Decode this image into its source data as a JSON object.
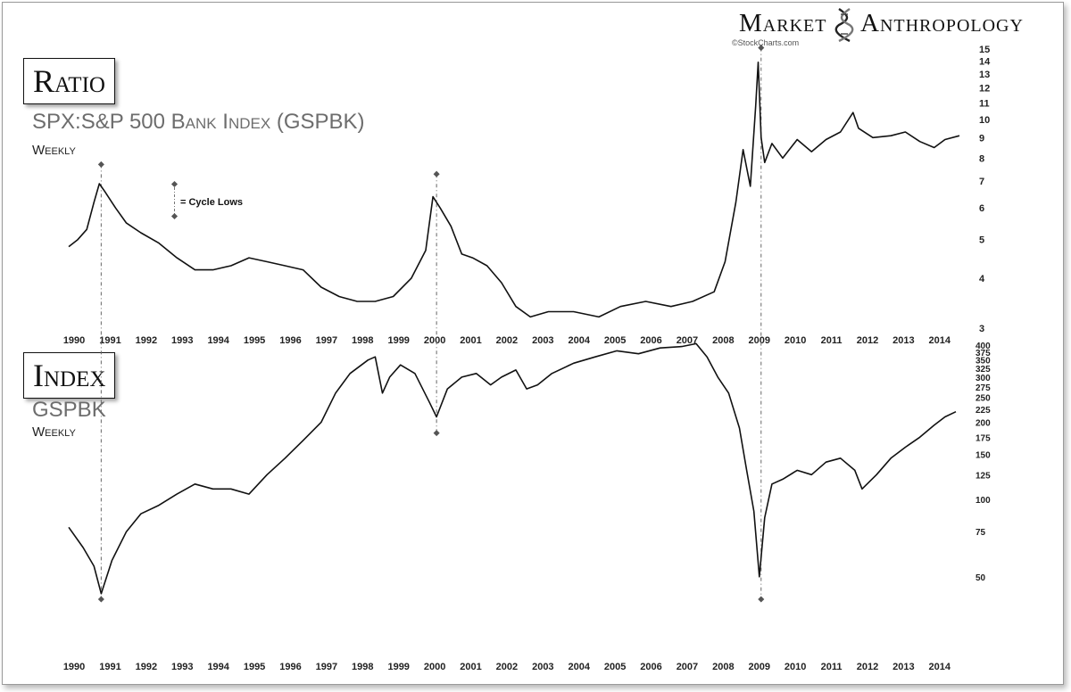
{
  "brand": {
    "left": "Market",
    "right": "Anthropology",
    "credit": "©StockCharts.com"
  },
  "top_panel": {
    "box_label": "Ratio",
    "subtitle": "SPX:S&P 500 Bank Index (GSPBK)",
    "frequency": "Weekly"
  },
  "bottom_panel": {
    "box_label": "Index",
    "subtitle": "GSPBK",
    "frequency": "Weekly"
  },
  "legend": {
    "text": "= Cycle Lows"
  },
  "chart_data": [
    {
      "type": "line",
      "title": "SPX:S&P 500 Bank Index (GSPBK)",
      "frequency": "Weekly",
      "x_tick_labels": [
        "1990",
        "1991",
        "1992",
        "1993",
        "1994",
        "1995",
        "1996",
        "1997",
        "1998",
        "1999",
        "2000",
        "2001",
        "2002",
        "2003",
        "2004",
        "2005",
        "2006",
        "2007",
        "2008",
        "2009",
        "2010",
        "2011",
        "2012",
        "2013",
        "2014"
      ],
      "y_tick_labels": [
        "3",
        "4",
        "5",
        "6",
        "7",
        "8",
        "9",
        "10",
        "11",
        "12",
        "13",
        "14",
        "15"
      ],
      "y_scale": "log",
      "ylim": [
        3,
        15
      ],
      "xlim": [
        1990.0,
        2014.7
      ],
      "grid": false,
      "cycle_low_markers": [
        {
          "x": 1990.9,
          "y": 7.4
        },
        {
          "x": 2000.2,
          "y": 7.0
        },
        {
          "x": 2009.2,
          "y": 14.5
        }
      ],
      "series": [
        {
          "x": [
            1990.0,
            1990.25,
            1990.5,
            1990.7,
            1990.85,
            1991.0,
            1991.3,
            1991.6,
            1992.0,
            1992.5,
            1993.0,
            1993.5,
            1994.0,
            1994.5,
            1995.0,
            1995.5,
            1996.0,
            1996.5,
            1997.0,
            1997.5,
            1998.0,
            1998.5,
            1999.0,
            1999.5,
            1999.9,
            2000.1,
            2000.3,
            2000.6,
            2000.9,
            2001.2,
            2001.6,
            2002.0,
            2002.4,
            2002.8,
            2003.3,
            2004.0,
            2004.7,
            2005.3,
            2006.0,
            2006.7,
            2007.3,
            2007.9,
            2008.2,
            2008.5,
            2008.7,
            2008.9,
            2009.05,
            2009.12,
            2009.2,
            2009.3,
            2009.5,
            2009.8,
            2010.2,
            2010.6,
            2011.0,
            2011.4,
            2011.75,
            2011.9,
            2012.3,
            2012.8,
            2013.2,
            2013.6,
            2014.0,
            2014.3,
            2014.7
          ],
          "y": [
            4.8,
            5.0,
            5.3,
            6.2,
            6.9,
            6.6,
            6.0,
            5.5,
            5.2,
            4.9,
            4.5,
            4.2,
            4.2,
            4.3,
            4.5,
            4.4,
            4.3,
            4.2,
            3.8,
            3.6,
            3.5,
            3.5,
            3.6,
            4.0,
            4.7,
            6.4,
            6.0,
            5.4,
            4.6,
            4.5,
            4.3,
            3.9,
            3.4,
            3.2,
            3.3,
            3.3,
            3.2,
            3.4,
            3.5,
            3.4,
            3.5,
            3.7,
            4.4,
            6.2,
            8.4,
            6.8,
            10.8,
            13.9,
            9.0,
            7.8,
            8.7,
            8.0,
            8.9,
            8.3,
            8.9,
            9.3,
            10.4,
            9.5,
            9.0,
            9.1,
            9.3,
            8.8,
            8.5,
            8.9,
            9.1
          ]
        }
      ]
    },
    {
      "type": "line",
      "title": "GSPBK",
      "frequency": "Weekly",
      "x_tick_labels": [
        "1990",
        "1991",
        "1992",
        "1993",
        "1994",
        "1995",
        "1996",
        "1997",
        "1998",
        "1999",
        "2000",
        "2001",
        "2002",
        "2003",
        "2004",
        "2005",
        "2006",
        "2007",
        "2008",
        "2009",
        "2010",
        "2011",
        "2012",
        "2013",
        "2014"
      ],
      "y_tick_labels": [
        "50",
        "75",
        "100",
        "125",
        "150",
        "175",
        "200",
        "225",
        "250",
        "275",
        "300",
        "325",
        "350",
        "375",
        "400"
      ],
      "y_scale": "log",
      "ylim": [
        45,
        400
      ],
      "xlim": [
        1990.0,
        2014.7
      ],
      "grid": false,
      "cycle_low_markers": [
        {
          "x": 1990.9,
          "y": 45
        },
        {
          "x": 2000.2,
          "y": 200
        },
        {
          "x": 2009.2,
          "y": 45
        }
      ],
      "series": [
        {
          "x": [
            1990.0,
            1990.4,
            1990.7,
            1990.9,
            1991.2,
            1991.6,
            1992.0,
            1992.5,
            1993.0,
            1993.5,
            1994.0,
            1994.5,
            1995.0,
            1995.5,
            1996.0,
            1996.5,
            1997.0,
            1997.4,
            1997.8,
            1998.3,
            1998.5,
            1998.7,
            1998.9,
            1999.2,
            1999.6,
            2000.0,
            2000.2,
            2000.5,
            2000.9,
            2001.3,
            2001.7,
            2002.0,
            2002.4,
            2002.7,
            2003.0,
            2003.4,
            2004.0,
            2004.6,
            2005.2,
            2005.8,
            2006.4,
            2007.0,
            2007.4,
            2007.7,
            2008.0,
            2008.3,
            2008.6,
            2008.8,
            2009.0,
            2009.15,
            2009.3,
            2009.5,
            2009.8,
            2010.2,
            2010.6,
            2011.0,
            2011.4,
            2011.8,
            2012.0,
            2012.4,
            2012.8,
            2013.2,
            2013.6,
            2014.0,
            2014.3,
            2014.6
          ],
          "y": [
            78,
            65,
            55,
            43,
            58,
            75,
            88,
            95,
            105,
            115,
            110,
            110,
            105,
            125,
            145,
            170,
            200,
            260,
            310,
            350,
            360,
            260,
            300,
            335,
            310,
            240,
            210,
            270,
            300,
            310,
            280,
            300,
            320,
            270,
            280,
            310,
            340,
            360,
            380,
            370,
            390,
            395,
            405,
            360,
            300,
            260,
            190,
            130,
            90,
            50,
            85,
            115,
            120,
            130,
            125,
            140,
            145,
            130,
            110,
            125,
            145,
            160,
            175,
            195,
            210,
            220
          ]
        }
      ]
    }
  ]
}
